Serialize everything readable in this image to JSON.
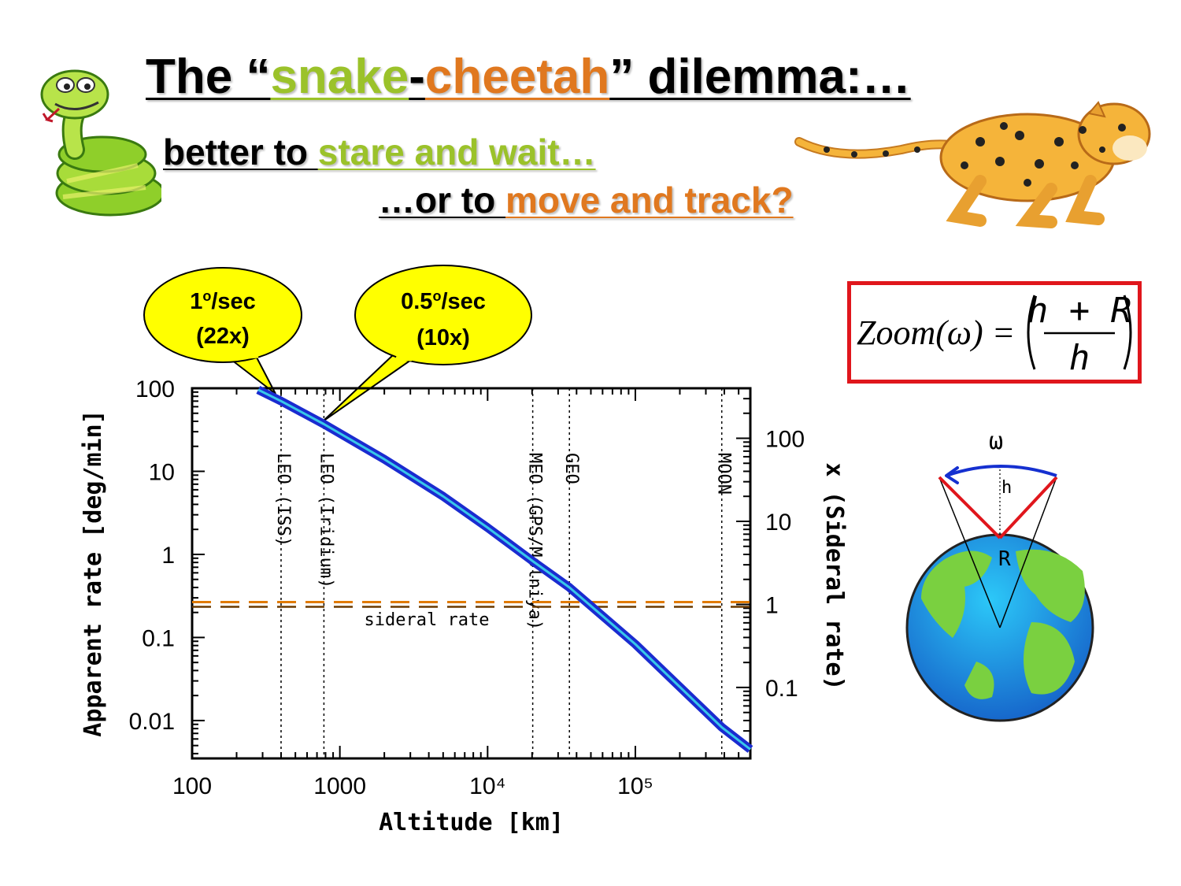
{
  "title": {
    "part1": "The “",
    "snake": "snake",
    "dash": "-",
    "cheetah": "cheetah",
    "part2": "” dilemma:…"
  },
  "subtitle": {
    "line1_prefix": "better to ",
    "line1_highlight": "stare and wait…",
    "line2_prefix": "…or to ",
    "line2_highlight": "move and track?"
  },
  "bubbles": [
    {
      "line1": "1",
      "sup": "o",
      "line1b": "/sec",
      "line2": "(22x)"
    },
    {
      "line1": "0.5",
      "sup": "o",
      "line1b": "/sec",
      "line2": "(10x)"
    }
  ],
  "formula": {
    "lhs": "Zoom(ω) =",
    "numerator": "h + R",
    "denominator": "h"
  },
  "earth_diagram": {
    "omega": "ω",
    "h": "h",
    "R": "R"
  },
  "colors": {
    "green": "#9bc22a",
    "orange": "#e0781f",
    "curve_outer": "#1a2bd0",
    "curve_inner": "#38c8e8",
    "sidereal_line": "#e07a00",
    "formula_border": "#e0161c",
    "bubble_fill": "#ffff00"
  },
  "chart_data": {
    "type": "line",
    "xlabel": "Altitude [km]",
    "ylabel": "Apparent rate [deg/min]",
    "y2label": "x (Sideral rate)",
    "xscale": "log",
    "yscale": "log",
    "xlim": [
      100,
      600000
    ],
    "ylim": [
      0.0035,
      100
    ],
    "x_ticks": [
      "100",
      "1000",
      "10⁴",
      "10⁵"
    ],
    "y_ticks": [
      "100",
      "10",
      "1",
      "0.1",
      "0.01"
    ],
    "y2_ticks": [
      "100",
      "10",
      "1",
      "0.1"
    ],
    "series": [
      {
        "x": [
          280,
          400,
          780,
          2000,
          5000,
          10000,
          20200,
          35786,
          100000,
          384400,
          600000
        ],
        "y": [
          96,
          70,
          37,
          14,
          5.0,
          2.1,
          0.83,
          0.4,
          0.083,
          0.0083,
          0.0045
        ]
      }
    ],
    "sidereal_rate": {
      "label": "sideral rate",
      "y": 0.25
    },
    "vlines": [
      {
        "x": 400,
        "label": "LEO (ISS)"
      },
      {
        "x": 780,
        "label": "LEO (Iridium)"
      },
      {
        "x": 20200,
        "label": "MEO (GPS/Molniya)"
      },
      {
        "x": 35786,
        "label": "GEO"
      },
      {
        "x": 384400,
        "label": "MOON"
      }
    ],
    "grid": false
  }
}
